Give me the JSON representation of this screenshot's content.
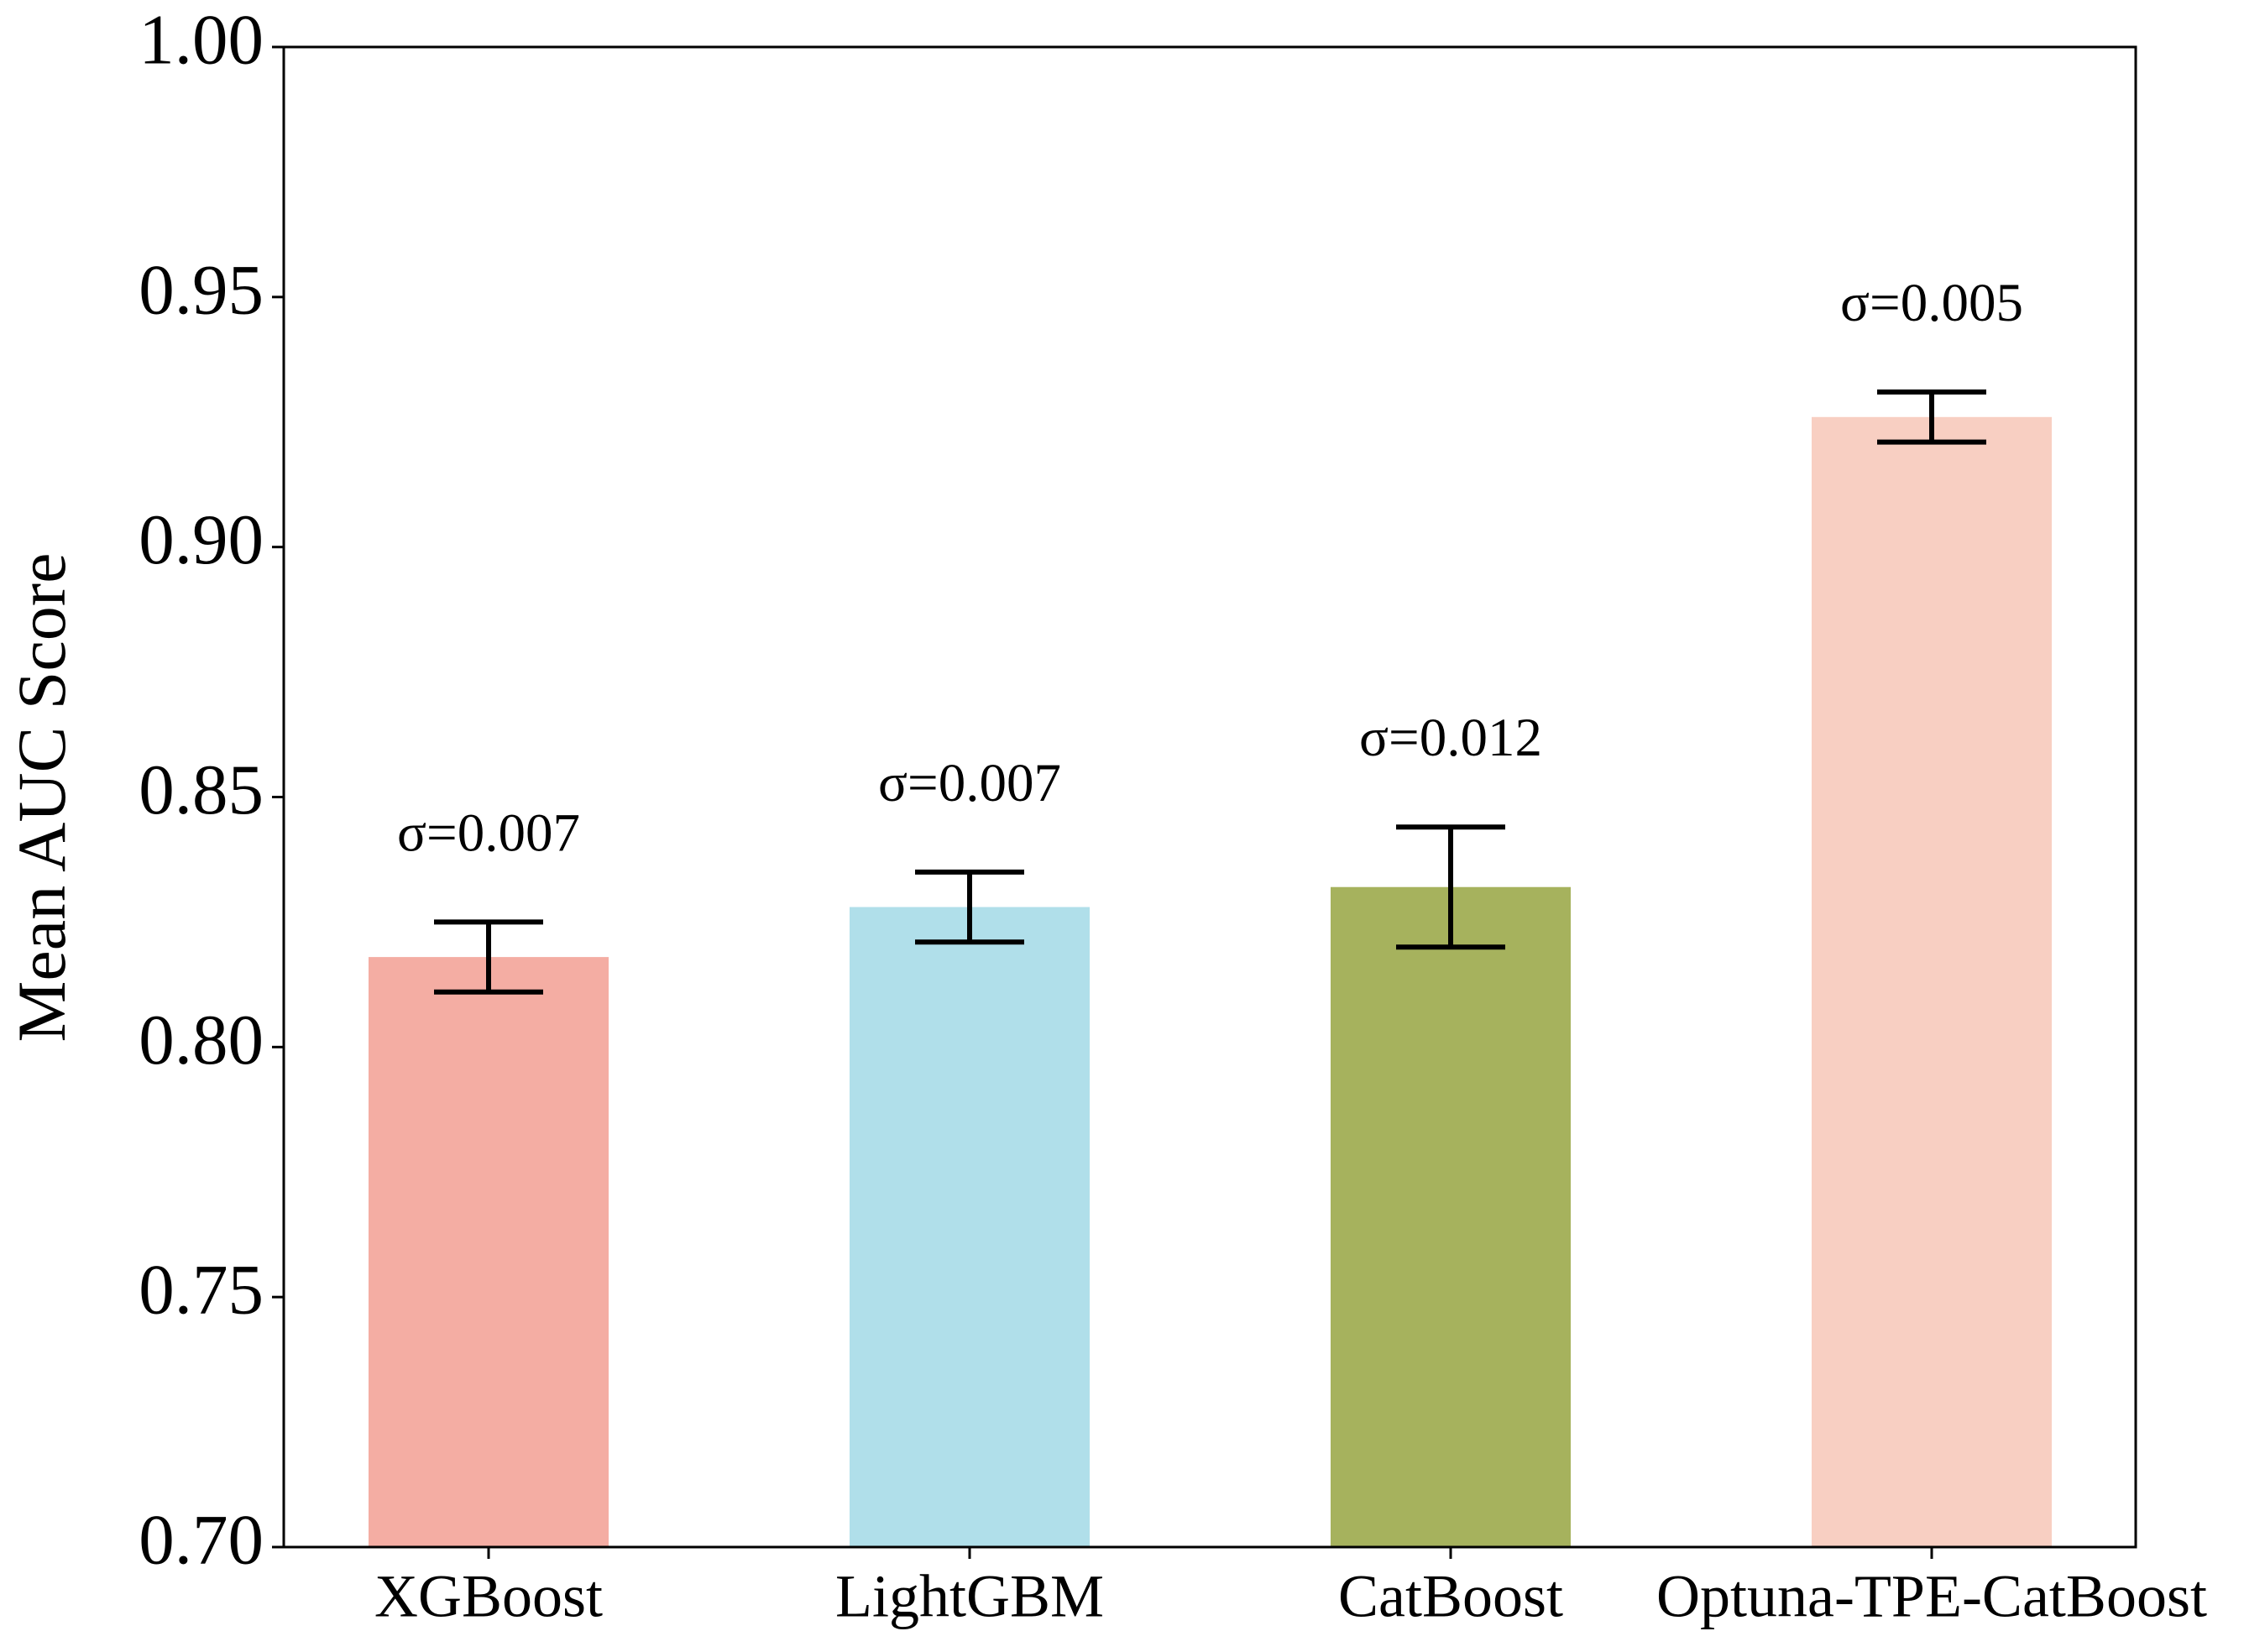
{
  "chart_data": {
    "type": "bar",
    "y_label": "Mean AUC Score",
    "categories": [
      "XGBoost",
      "LightGBM",
      "CatBoost",
      "Optuna-TPE-CatBoost"
    ],
    "values": [
      0.818,
      0.828,
      0.832,
      0.926
    ],
    "errors": [
      0.007,
      0.007,
      0.012,
      0.005
    ],
    "error_labels": [
      "σ=0.007",
      "σ=0.007",
      "σ=0.012",
      "σ=0.005"
    ],
    "colors": [
      "#f4ada3",
      "#b0dfea",
      "#a6b25d",
      "#f8cfc2"
    ],
    "ylim": [
      0.7,
      1.0
    ],
    "yticks": [
      {
        "value": 0.7,
        "label": "0.70"
      },
      0.75,
      {
        "value": 0.8,
        "label": "0.80"
      },
      0.85,
      {
        "value": 0.9,
        "label": "0.90"
      },
      0.95,
      {
        "value": 1.0,
        "label": "1.00"
      }
    ],
    "grid": false
  }
}
